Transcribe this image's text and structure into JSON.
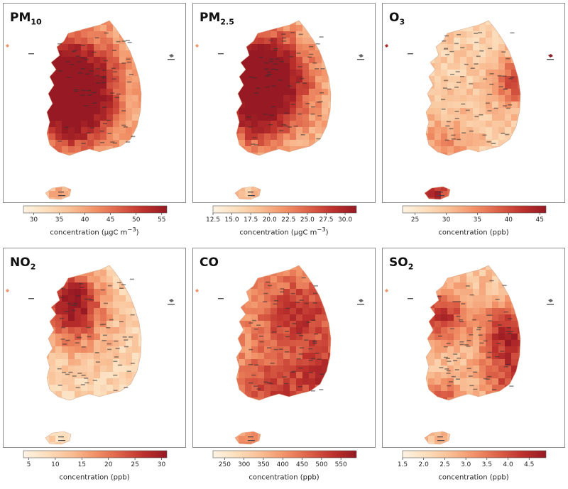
{
  "chart_data": [
    {
      "type": "choropleth-map",
      "title_main": "PM",
      "title_sub": "10",
      "colorbar": {
        "ticks": [
          "30",
          "35",
          "40",
          "45",
          "50",
          "55"
        ],
        "min": 28,
        "max": 56,
        "label": "concentration (μgC m",
        "unit_sup": "−3",
        "label_tail": ")"
      },
      "colormap": "OrRd"
    },
    {
      "type": "choropleth-map",
      "title_main": "PM",
      "title_sub": "2.5",
      "colorbar": {
        "ticks": [
          "12.5",
          "15.0",
          "17.5",
          "20.0",
          "22.5",
          "25.0",
          "27.5",
          "30.0"
        ],
        "min": 12.5,
        "max": 31.5,
        "label": "concentration (μgC m",
        "unit_sup": "−3",
        "label_tail": ")"
      },
      "colormap": "OrRd"
    },
    {
      "type": "choropleth-map",
      "title_main": "O",
      "title_sub": "3",
      "colorbar": {
        "ticks": [
          "25",
          "30",
          "35",
          "40",
          "45"
        ],
        "min": 23,
        "max": 46,
        "label": "concentration (ppb)",
        "unit_sup": "",
        "label_tail": ""
      },
      "colormap": "OrRd"
    },
    {
      "type": "choropleth-map",
      "title_main": "NO",
      "title_sub": "2",
      "colorbar": {
        "ticks": [
          "5",
          "10",
          "15",
          "20",
          "25",
          "30"
        ],
        "min": 4,
        "max": 31,
        "label": "concentration (ppb)",
        "unit_sup": "",
        "label_tail": ""
      },
      "colormap": "OrRd"
    },
    {
      "type": "choropleth-map",
      "title_main": "CO",
      "title_sub": "",
      "colorbar": {
        "ticks": [
          "250",
          "300",
          "350",
          "400",
          "450",
          "500",
          "550"
        ],
        "min": 220,
        "max": 590,
        "label": "concentration (ppb)",
        "unit_sup": "",
        "label_tail": ""
      },
      "colormap": "OrRd"
    },
    {
      "type": "choropleth-map",
      "title_main": "SO",
      "title_sub": "2",
      "colorbar": {
        "ticks": [
          "1.5",
          "2.0",
          "2.5",
          "3.0",
          "3.5",
          "4.0",
          "4.5"
        ],
        "min": 1.5,
        "max": 4.9,
        "label": "concentration (ppb)",
        "unit_sup": "",
        "label_tail": ""
      },
      "colormap": "OrRd"
    }
  ],
  "colors": {
    "cmap_low": "#fdf3e4",
    "cmap_mid": "#ef9268",
    "cmap_high": "#a8202a",
    "frame": "#8c8c8c"
  }
}
